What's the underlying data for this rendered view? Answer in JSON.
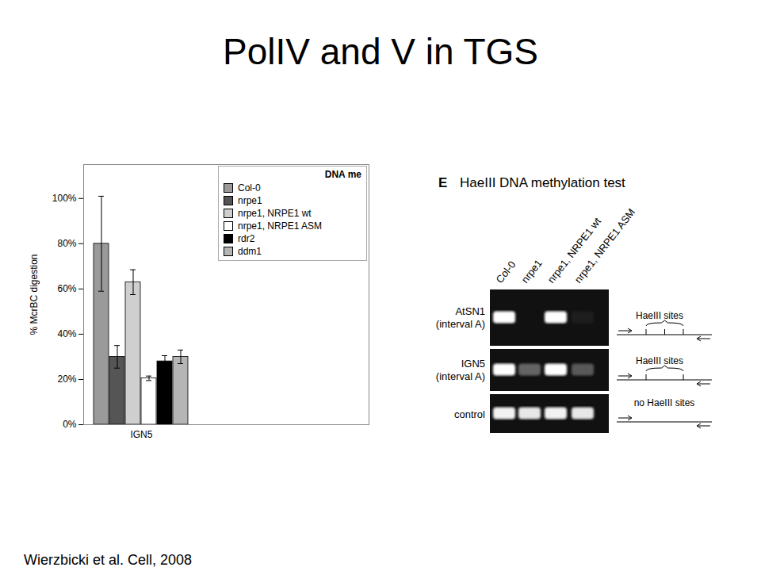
{
  "title": "PolIV and V in TGS",
  "caption": "Wierzbicki et al. Cell, 2008",
  "chart_data": {
    "type": "bar",
    "y_label": "% McrBC digestion",
    "legend_title": "DNA me",
    "legend": "top-right",
    "grid": false,
    "categories": [
      "IGN5"
    ],
    "series": [
      {
        "name": "Col-0",
        "color": "#9a9a9a",
        "values": [
          80
        ],
        "errors": [
          21
        ]
      },
      {
        "name": "nrpe1",
        "color": "#555555",
        "values": [
          30
        ],
        "errors": [
          5
        ]
      },
      {
        "name": "nrpe1, NRPE1 wt",
        "color": "#cfcfcf",
        "values": [
          63
        ],
        "errors": [
          5.5
        ]
      },
      {
        "name": "nrpe1, NRPE1 ASM",
        "color": "#ffffff",
        "values": [
          20.5
        ],
        "errors": [
          1
        ]
      },
      {
        "name": "rdr2",
        "color": "#000000",
        "values": [
          28
        ],
        "errors": [
          2.5
        ]
      },
      {
        "name": "ddm1",
        "color": "#b5b5b5",
        "values": [
          30
        ],
        "errors": [
          3
        ]
      }
    ],
    "ylim": [
      0,
      115
    ],
    "yticks": [
      {
        "value": 0,
        "label": "0%"
      },
      {
        "value": 20,
        "label": "20%"
      },
      {
        "value": 40,
        "label": "40%"
      },
      {
        "value": 60,
        "label": "60%"
      },
      {
        "value": 80,
        "label": "80%"
      },
      {
        "value": 100,
        "label": "100%"
      }
    ]
  },
  "gel_panel": {
    "label": "E",
    "title": "HaeIII DNA methylation test",
    "lanes": [
      "Col-0",
      "nrpe1",
      "nrpe1, NRPE1 wt",
      "nrpe1, NRPE1 ASM"
    ],
    "rows": [
      {
        "name": "AtSN1",
        "region": "(interval A)",
        "bands": [
          1,
          0,
          1,
          0.05
        ],
        "annotation": "HaeIII sites",
        "sites": 3
      },
      {
        "name": "IGN5",
        "region": "(interval A)",
        "bands": [
          1,
          0.35,
          1,
          0.3
        ],
        "annotation": "HaeIII sites",
        "sites": 2
      },
      {
        "name": "control",
        "bands": [
          0.95,
          0.9,
          0.95,
          0.9
        ],
        "annotation": "no HaeIII sites",
        "sites": 0
      }
    ]
  }
}
